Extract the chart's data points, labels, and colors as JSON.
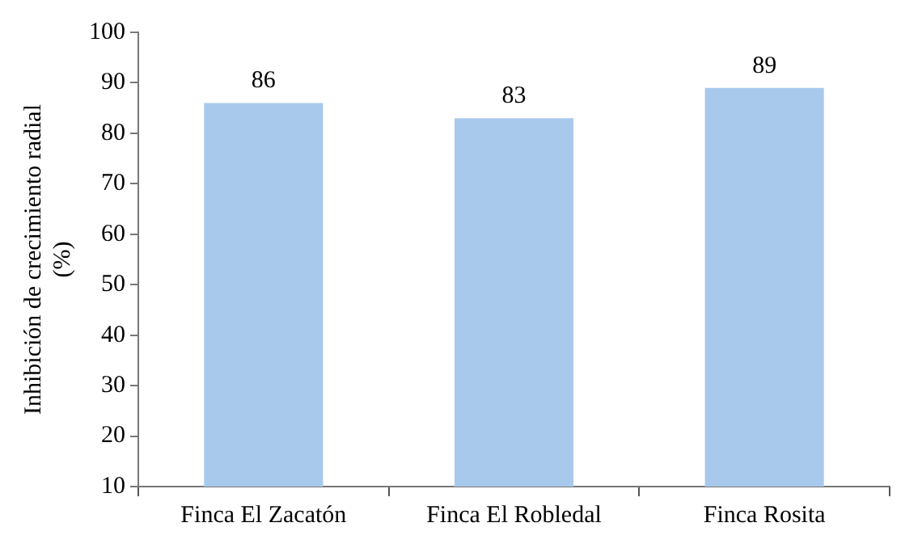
{
  "chart_data": {
    "type": "bar",
    "categories": [
      "Finca El Zacatón",
      "Finca El Robledal",
      "Finca Rosita"
    ],
    "values": [
      86,
      83,
      89
    ],
    "color": "#a9c9ec",
    "ylabel": "Inhibición de crecimiento radial (%)",
    "ylim": [
      10,
      100
    ],
    "yticks": [
      10,
      20,
      30,
      40,
      50,
      60,
      70,
      80,
      90,
      100
    ],
    "grid": false,
    "legend": false,
    "data_labels": true
  }
}
